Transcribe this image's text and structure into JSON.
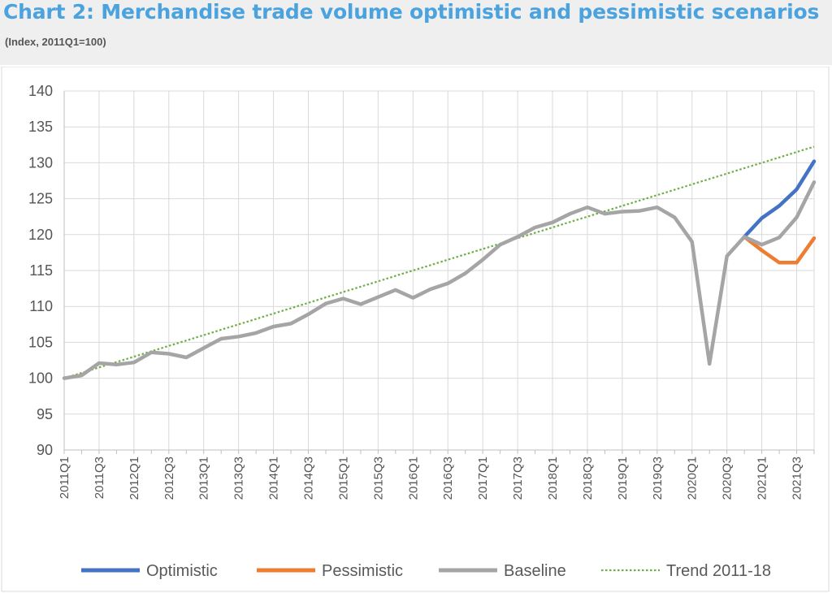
{
  "title": "Chart 2: Merchandise trade volume optimistic and pessimistic scenarios",
  "subtitle": "(Index, 2011Q1=100)",
  "chart_data": {
    "type": "line",
    "ylim": [
      90,
      140
    ],
    "yticks": [
      90,
      95,
      100,
      105,
      110,
      115,
      120,
      125,
      130,
      135,
      140
    ],
    "grid": true,
    "legend_position": "bottom",
    "categories": [
      "2011Q1",
      "2011Q2",
      "2011Q3",
      "2011Q4",
      "2012Q1",
      "2012Q2",
      "2012Q3",
      "2012Q4",
      "2013Q1",
      "2013Q2",
      "2013Q3",
      "2013Q4",
      "2014Q1",
      "2014Q2",
      "2014Q3",
      "2014Q4",
      "2015Q1",
      "2015Q2",
      "2015Q3",
      "2015Q4",
      "2016Q1",
      "2016Q2",
      "2016Q3",
      "2016Q4",
      "2017Q1",
      "2017Q2",
      "2017Q3",
      "2017Q4",
      "2018Q1",
      "2018Q2",
      "2018Q3",
      "2018Q4",
      "2019Q1",
      "2019Q2",
      "2019Q3",
      "2019Q4",
      "2020Q1",
      "2020Q2",
      "2020Q3",
      "2020Q4",
      "2021Q1",
      "2021Q2",
      "2021Q3",
      "2021Q4"
    ],
    "x_tick_labels": [
      "2011Q1",
      "2011Q3",
      "2012Q1",
      "2012Q3",
      "2013Q1",
      "2013Q3",
      "2014Q1",
      "2014Q3",
      "2015Q1",
      "2015Q3",
      "2016Q1",
      "2016Q3",
      "2017Q1",
      "2017Q3",
      "2018Q1",
      "2018Q3",
      "2019Q1",
      "2019Q3",
      "2020Q1",
      "2020Q3",
      "2021Q1",
      "2021Q3"
    ],
    "series": [
      {
        "name": "Optimistic",
        "color": "#4472c4",
        "style": "solid",
        "values": [
          null,
          null,
          null,
          null,
          null,
          null,
          null,
          null,
          null,
          null,
          null,
          null,
          null,
          null,
          null,
          null,
          null,
          null,
          null,
          null,
          null,
          null,
          null,
          null,
          null,
          null,
          null,
          null,
          null,
          null,
          null,
          null,
          null,
          null,
          null,
          null,
          null,
          null,
          null,
          119.7,
          122.3,
          124.0,
          126.3,
          130.2
        ]
      },
      {
        "name": "Pessimistic",
        "color": "#ed7d31",
        "style": "solid",
        "values": [
          null,
          null,
          null,
          null,
          null,
          null,
          null,
          null,
          null,
          null,
          null,
          null,
          null,
          null,
          null,
          null,
          null,
          null,
          null,
          null,
          null,
          null,
          null,
          null,
          null,
          null,
          null,
          null,
          null,
          null,
          null,
          null,
          null,
          null,
          null,
          null,
          null,
          null,
          null,
          119.7,
          117.8,
          116.1,
          116.1,
          119.5
        ]
      },
      {
        "name": "Baseline",
        "color": "#a5a5a5",
        "style": "solid",
        "values": [
          100.0,
          100.4,
          102.1,
          101.9,
          102.2,
          103.6,
          103.4,
          102.9,
          104.2,
          105.5,
          105.8,
          106.3,
          107.2,
          107.6,
          108.9,
          110.4,
          111.1,
          110.3,
          111.3,
          112.3,
          111.2,
          112.4,
          113.2,
          114.6,
          116.5,
          118.6,
          119.7,
          121.0,
          121.7,
          122.9,
          123.8,
          122.9,
          123.2,
          123.3,
          123.8,
          122.4,
          119.0,
          102.0,
          117.0,
          119.7,
          118.6,
          119.6,
          122.4,
          127.3
        ]
      },
      {
        "name": "Trend 2011-18",
        "color": "#70ad47",
        "style": "dotted",
        "values": [
          100.0,
          100.75,
          101.5,
          102.25,
          103.0,
          103.75,
          104.5,
          105.25,
          106.0,
          106.75,
          107.5,
          108.25,
          109.0,
          109.75,
          110.5,
          111.25,
          112.0,
          112.75,
          113.5,
          114.25,
          115.0,
          115.75,
          116.5,
          117.25,
          118.0,
          118.75,
          119.5,
          120.25,
          121.0,
          121.75,
          122.5,
          123.25,
          124.0,
          124.75,
          125.5,
          126.25,
          127.0,
          127.75,
          128.5,
          129.25,
          130.0,
          130.75,
          131.5,
          132.25
        ]
      }
    ]
  }
}
